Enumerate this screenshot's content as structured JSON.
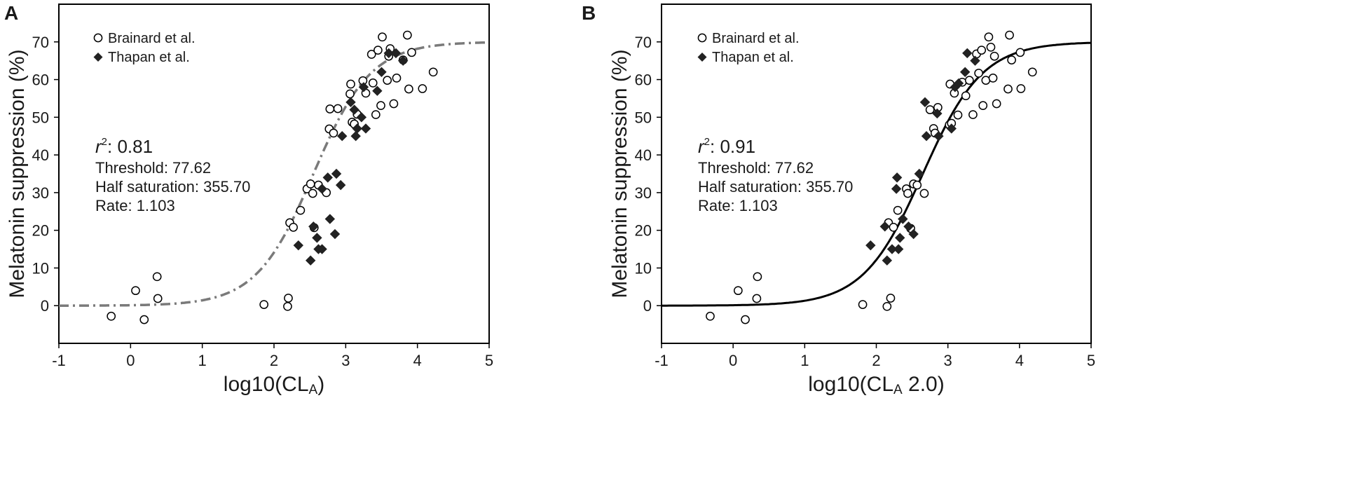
{
  "chart_data": [
    {
      "type": "scatter",
      "panel_label": "A",
      "xlabel": "log10(CL",
      "xlabel_subscript": "A",
      "xlabel_suffix": ")",
      "ylabel": "Melatonin suppression (%)",
      "xlim": [
        -1,
        5
      ],
      "ylim": [
        -10,
        80
      ],
      "xticks": [
        "-1",
        "0",
        "1",
        "2",
        "3",
        "4",
        "5"
      ],
      "yticks": [
        "0",
        "10",
        "20",
        "30",
        "40",
        "50",
        "60",
        "70"
      ],
      "legend": [
        "Brainard et al.",
        "Thapan et al."
      ],
      "stats": {
        "r2_label": "r",
        "r2_sup": "2",
        "r2_value": ": 0.81",
        "threshold": "Threshold: 77.62",
        "half_saturation": "Half saturation: 355.70",
        "rate": "Rate: 1.103"
      },
      "fit": {
        "style": "dashdot",
        "color": "#7a7a7a",
        "max": 70,
        "x50": 2.55,
        "k": 2.5,
        "xmin": -1,
        "xmax": 5
      },
      "series": [
        {
          "name": "Brainard et al.",
          "marker": "circle-open",
          "points": [
            [
              -0.27,
              -2.8
            ],
            [
              0.07,
              4
            ],
            [
              0.19,
              -3.7
            ],
            [
              0.37,
              7.7
            ],
            [
              0.38,
              1.9
            ],
            [
              1.86,
              0.3
            ],
            [
              2.19,
              -0.2
            ],
            [
              2.2,
              2
            ],
            [
              2.22,
              22
            ],
            [
              2.27,
              20.8
            ],
            [
              2.37,
              25.3
            ],
            [
              2.46,
              31
            ],
            [
              2.51,
              32.3
            ],
            [
              2.54,
              29.8
            ],
            [
              2.56,
              20.7
            ],
            [
              2.62,
              32
            ],
            [
              2.73,
              30
            ],
            [
              2.77,
              46.9
            ],
            [
              2.78,
              52.2
            ],
            [
              2.83,
              45.8
            ],
            [
              2.89,
              52.3
            ],
            [
              3.06,
              56.2
            ],
            [
              3.07,
              58.8
            ],
            [
              3.09,
              48.7
            ],
            [
              3.12,
              48.2
            ],
            [
              3.16,
              50.8
            ],
            [
              3.24,
              59.7
            ],
            [
              3.28,
              56.4
            ],
            [
              3.36,
              66.7
            ],
            [
              3.38,
              59.1
            ],
            [
              3.42,
              50.7
            ],
            [
              3.45,
              67.8
            ],
            [
              3.49,
              53.1
            ],
            [
              3.51,
              71.3
            ],
            [
              3.58,
              59.8
            ],
            [
              3.6,
              66.2
            ],
            [
              3.62,
              68.2
            ],
            [
              3.67,
              53.6
            ],
            [
              3.71,
              60.4
            ],
            [
              3.8,
              65.2
            ],
            [
              3.86,
              71.8
            ],
            [
              3.88,
              57.5
            ],
            [
              3.92,
              67.2
            ],
            [
              4.07,
              57.6
            ],
            [
              4.22,
              62
            ]
          ]
        },
        {
          "name": "Thapan et al.",
          "marker": "diamond-filled",
          "points": [
            [
              2.34,
              16
            ],
            [
              2.51,
              12
            ],
            [
              2.55,
              21
            ],
            [
              2.6,
              18
            ],
            [
              2.62,
              15
            ],
            [
              2.67,
              15
            ],
            [
              2.67,
              31
            ],
            [
              2.75,
              34
            ],
            [
              2.78,
              23
            ],
            [
              2.85,
              19
            ],
            [
              2.87,
              35
            ],
            [
              2.93,
              32
            ],
            [
              2.95,
              45
            ],
            [
              3.07,
              54
            ],
            [
              3.12,
              52
            ],
            [
              3.14,
              45
            ],
            [
              3.16,
              47
            ],
            [
              3.22,
              50
            ],
            [
              3.25,
              58
            ],
            [
              3.28,
              47
            ],
            [
              3.44,
              57
            ],
            [
              3.5,
              62
            ],
            [
              3.6,
              67
            ],
            [
              3.7,
              67
            ],
            [
              3.8,
              65
            ]
          ]
        }
      ]
    },
    {
      "type": "scatter",
      "panel_label": "B",
      "xlabel": "log10(CL",
      "xlabel_subscript": "A",
      "xlabel_suffix": " 2.0)",
      "ylabel": "Melatonin suppression (%)",
      "xlim": [
        -1,
        5
      ],
      "ylim": [
        -10,
        80
      ],
      "xticks": [
        "-1",
        "0",
        "1",
        "2",
        "3",
        "4",
        "5"
      ],
      "yticks": [
        "0",
        "10",
        "20",
        "30",
        "40",
        "50",
        "60",
        "70"
      ],
      "legend": [
        "Brainard et al.",
        "Thapan et al."
      ],
      "stats": {
        "r2_label": "r",
        "r2_sup": "2",
        "r2_value": ": 0.91",
        "threshold": "Threshold: 77.62",
        "half_saturation": "Half saturation: 355.70",
        "rate": "Rate: 1.103"
      },
      "fit": {
        "style": "solid",
        "color": "#000000",
        "max": 70,
        "x50": 2.65,
        "k": 2.4,
        "xmin": -1,
        "xmax": 5
      },
      "series": [
        {
          "name": "Brainard et al.",
          "marker": "circle-open",
          "points": [
            [
              -0.32,
              -2.8
            ],
            [
              0.07,
              4
            ],
            [
              0.17,
              -3.7
            ],
            [
              0.33,
              1.9
            ],
            [
              0.34,
              7.7
            ],
            [
              1.81,
              0.3
            ],
            [
              2.15,
              -0.2
            ],
            [
              2.2,
              2
            ],
            [
              2.17,
              22
            ],
            [
              2.24,
              20.8
            ],
            [
              2.3,
              25.3
            ],
            [
              2.42,
              31
            ],
            [
              2.44,
              29.8
            ],
            [
              2.48,
              20.5
            ],
            [
              2.52,
              32.3
            ],
            [
              2.57,
              32
            ],
            [
              2.67,
              29.8
            ],
            [
              2.75,
              52
            ],
            [
              2.8,
              47
            ],
            [
              2.82,
              45.8
            ],
            [
              2.86,
              52.6
            ],
            [
              3.02,
              48
            ],
            [
              3.03,
              58.8
            ],
            [
              3.05,
              48.4
            ],
            [
              3.09,
              56.4
            ],
            [
              3.14,
              50.6
            ],
            [
              3.2,
              59.3
            ],
            [
              3.25,
              55.7
            ],
            [
              3.3,
              59.8
            ],
            [
              3.35,
              50.7
            ],
            [
              3.4,
              66.8
            ],
            [
              3.43,
              61.7
            ],
            [
              3.47,
              67.8
            ],
            [
              3.49,
              53.1
            ],
            [
              3.53,
              59.8
            ],
            [
              3.57,
              71.3
            ],
            [
              3.6,
              68.6
            ],
            [
              3.63,
              60.4
            ],
            [
              3.65,
              66.2
            ],
            [
              3.68,
              53.6
            ],
            [
              3.84,
              57.5
            ],
            [
              3.86,
              71.8
            ],
            [
              3.89,
              65.2
            ],
            [
              4.01,
              67.2
            ],
            [
              4.02,
              57.6
            ],
            [
              4.18,
              62
            ]
          ]
        },
        {
          "name": "Thapan et al.",
          "marker": "diamond-filled",
          "points": [
            [
              1.92,
              16
            ],
            [
              2.12,
              21
            ],
            [
              2.15,
              12
            ],
            [
              2.22,
              15
            ],
            [
              2.28,
              31
            ],
            [
              2.29,
              34
            ],
            [
              2.31,
              15
            ],
            [
              2.33,
              18
            ],
            [
              2.37,
              23
            ],
            [
              2.45,
              21
            ],
            [
              2.52,
              19
            ],
            [
              2.6,
              35
            ],
            [
              2.68,
              54
            ],
            [
              2.7,
              45
            ],
            [
              2.85,
              51
            ],
            [
              2.87,
              45
            ],
            [
              3.05,
              47
            ],
            [
              3.1,
              58
            ],
            [
              3.15,
              59
            ],
            [
              3.24,
              62
            ],
            [
              3.27,
              67
            ],
            [
              3.38,
              65
            ]
          ]
        }
      ]
    }
  ]
}
